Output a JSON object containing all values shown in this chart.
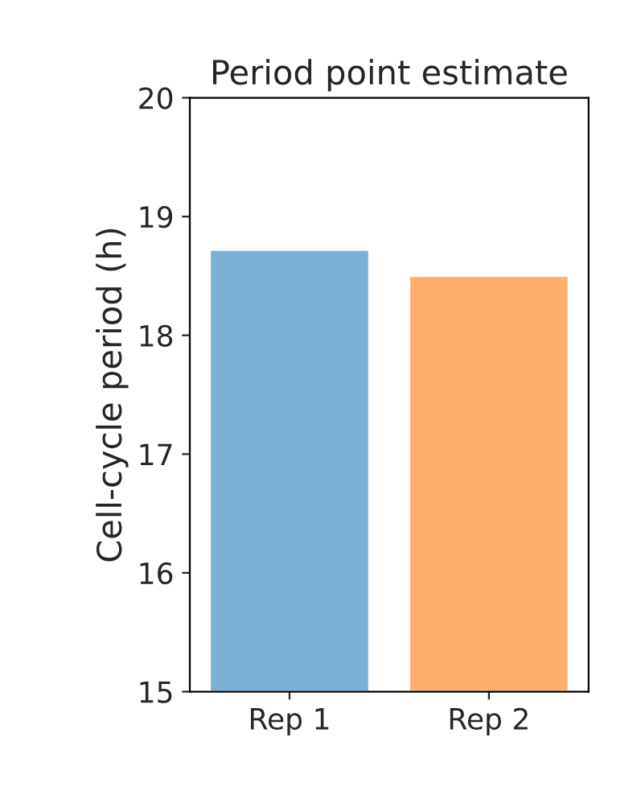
{
  "chart_data": {
    "type": "bar",
    "title": "Period point estimate",
    "ylabel": "Cell-cycle period (h)",
    "categories": [
      "Rep 1",
      "Rep 2"
    ],
    "values": [
      18.72,
      18.5
    ],
    "colors": [
      "#7bafd4",
      "#fdae6b"
    ],
    "ylim": [
      15,
      20
    ],
    "yticks": [
      15,
      16,
      17,
      18,
      19,
      20
    ],
    "grid": false,
    "legend": false
  }
}
